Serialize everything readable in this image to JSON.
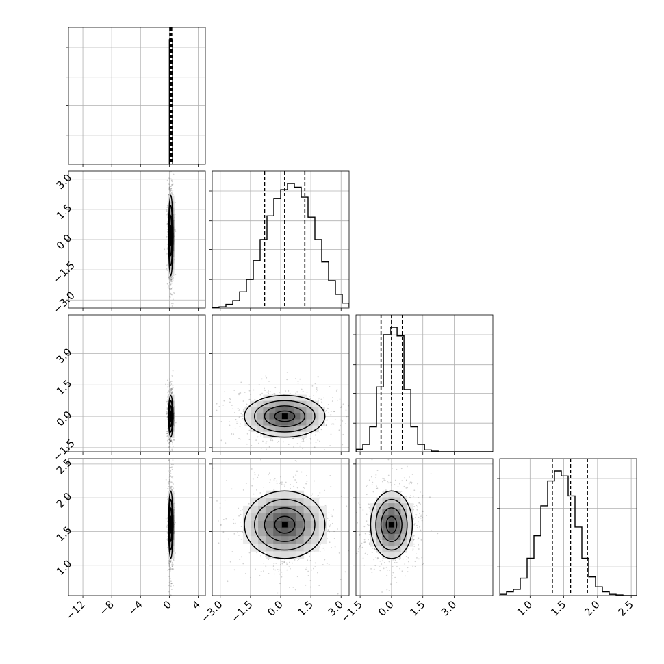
{
  "chart_data": {
    "type": "corner",
    "parameters": 4,
    "axes": [
      {
        "index": 0,
        "range": [
          -14,
          5
        ],
        "ticks": [
          -12,
          -8,
          -4,
          0,
          4
        ],
        "tick_labels": [
          "−12",
          "−8",
          "−4",
          "0",
          "4"
        ]
      },
      {
        "index": 1,
        "range": [
          -3.4,
          3.4
        ],
        "ticks": [
          -3.0,
          -1.5,
          0.0,
          1.5,
          3.0
        ],
        "tick_labels": [
          "−3.0",
          "−1.5",
          "0.0",
          "1.5",
          "3.0"
        ]
      },
      {
        "index": 2,
        "range": [
          -1.7,
          4.85
        ],
        "ticks": [
          -1.5,
          0.0,
          1.5,
          3.0
        ],
        "tick_labels": [
          "−1.5",
          "0.0",
          "1.5",
          "3.0"
        ]
      },
      {
        "index": 3,
        "range": [
          0.55,
          2.58
        ],
        "ticks": [
          1.0,
          1.5,
          2.0,
          2.5
        ],
        "tick_labels": [
          "1.0",
          "1.5",
          "2.0",
          "2.5"
        ]
      }
    ],
    "grid": true,
    "marginals": [
      {
        "param": 0,
        "quantiles": [
          0.07,
          0.2,
          0.33
        ],
        "bins_from": 0.0,
        "bin_width": 0.15,
        "counts": [
          1.0,
          1.0,
          1.0
        ]
      },
      {
        "param": 1,
        "quantiles": [
          -0.8,
          0.2,
          1.2
        ],
        "bins_from": -3.4,
        "bin_width": 0.34,
        "counts": [
          0.003,
          0.01,
          0.03,
          0.06,
          0.13,
          0.23,
          0.38,
          0.55,
          0.74,
          0.88,
          0.95,
          1.0,
          0.97,
          0.89,
          0.73,
          0.55,
          0.37,
          0.22,
          0.11,
          0.04,
          0.01
        ]
      },
      {
        "param": 2,
        "quantiles": [
          -0.5,
          0.0,
          0.52
        ],
        "bins_from": -1.7,
        "bin_width": 0.328,
        "counts": [
          0.02,
          0.06,
          0.2,
          0.52,
          0.94,
          1.0,
          0.93,
          0.5,
          0.2,
          0.06,
          0.015,
          0.005,
          0.0,
          0.0,
          0.0,
          0.0,
          0.0,
          0.0,
          0.0,
          0.0
        ]
      },
      {
        "param": 3,
        "quantiles": [
          1.33,
          1.6,
          1.85
        ],
        "bins_from": 0.55,
        "bin_width": 0.1015,
        "counts": [
          0.01,
          0.03,
          0.05,
          0.14,
          0.3,
          0.48,
          0.72,
          0.92,
          1.0,
          0.96,
          0.8,
          0.55,
          0.3,
          0.15,
          0.07,
          0.03,
          0.01,
          0.005,
          0.0,
          0.0
        ]
      }
    ],
    "joint": [
      {
        "x_param": 0,
        "y_param": 1,
        "center": [
          0.2,
          0.2
        ],
        "sd": [
          0.15,
          1.0
        ],
        "contour_scales": [
          0.5,
          1.0,
          1.5,
          2.0
        ]
      },
      {
        "x_param": 0,
        "y_param": 2,
        "center": [
          0.2,
          0.0
        ],
        "sd": [
          0.15,
          0.5
        ],
        "contour_scales": [
          0.5,
          1.0,
          1.5,
          2.0
        ]
      },
      {
        "x_param": 0,
        "y_param": 3,
        "center": [
          0.2,
          1.6
        ],
        "sd": [
          0.15,
          0.25
        ],
        "contour_scales": [
          0.5,
          1.0,
          1.5,
          2.0
        ]
      },
      {
        "x_param": 1,
        "y_param": 2,
        "center": [
          0.2,
          0.0
        ],
        "sd": [
          1.0,
          0.5
        ],
        "contour_scales": [
          0.5,
          1.0,
          1.5,
          2.0
        ]
      },
      {
        "x_param": 1,
        "y_param": 3,
        "center": [
          0.2,
          1.6
        ],
        "sd": [
          1.0,
          0.25
        ],
        "contour_scales": [
          0.5,
          1.0,
          1.5,
          2.0
        ]
      },
      {
        "x_param": 2,
        "y_param": 3,
        "center": [
          0.0,
          1.6
        ],
        "sd": [
          0.5,
          0.25
        ],
        "contour_scales": [
          0.5,
          1.0,
          1.5,
          2.0
        ]
      }
    ]
  }
}
